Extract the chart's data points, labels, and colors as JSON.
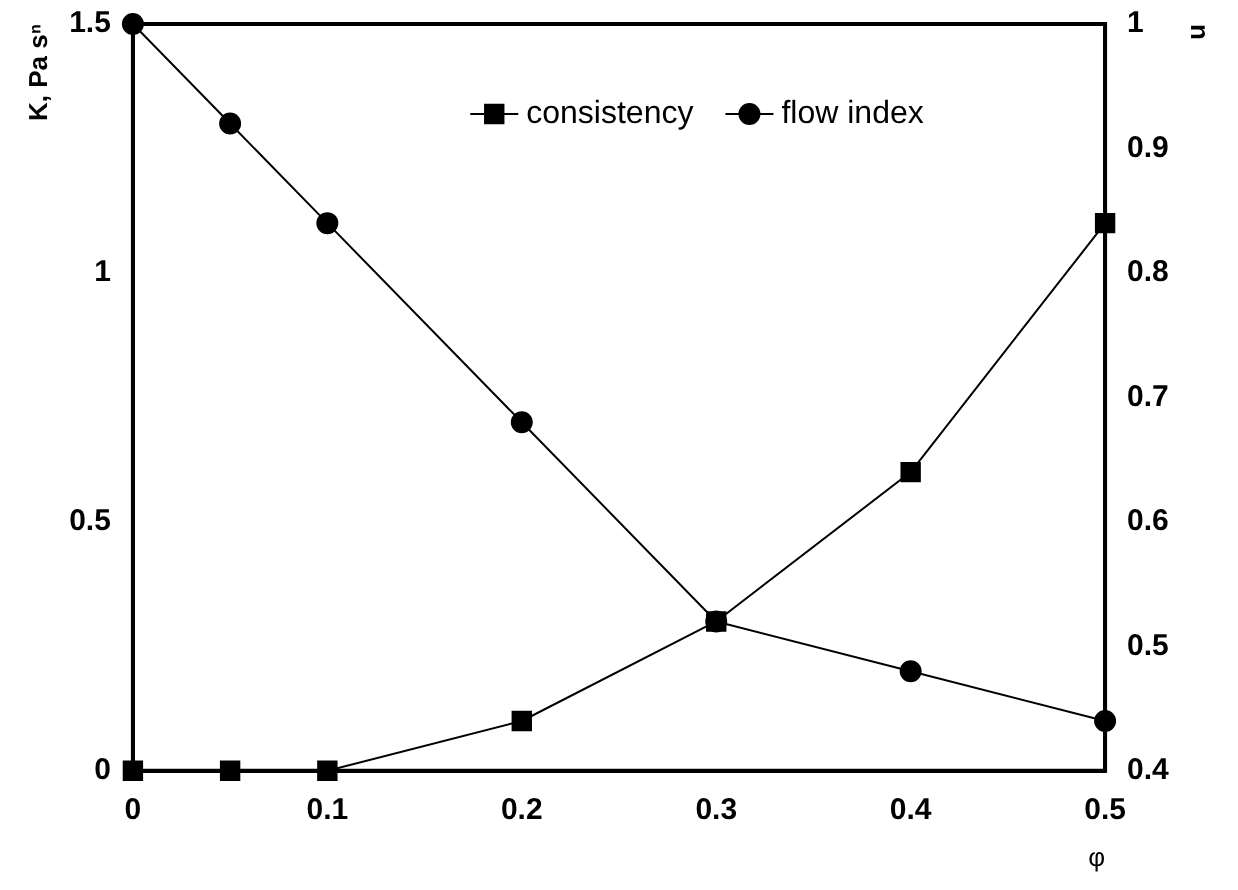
{
  "chart_data": {
    "type": "line",
    "xlabel": "φ",
    "ylabel": "K, Pa sⁿ",
    "y2label": "n",
    "x": [
      0,
      0.05,
      0.1,
      0.2,
      0.3,
      0.4,
      0.5
    ],
    "series": [
      {
        "name": "consistency",
        "color": "#000000",
        "marker": "square",
        "values": [
          0,
          0,
          0,
          0.1,
          0.3,
          0.6,
          1.1
        ]
      },
      {
        "name": "flow index",
        "color": "#000000",
        "marker": "circle",
        "axis": "y2",
        "values": [
          1,
          0.92,
          0.84,
          0.68,
          0.52,
          0.48,
          0.44
        ]
      }
    ],
    "xlim": [
      0,
      0.5
    ],
    "xticks": [
      0,
      0.1,
      0.2,
      0.3,
      0.4,
      0.5
    ],
    "ylim": [
      0,
      1.5
    ],
    "yticks": [
      0,
      0.5,
      1,
      1.5
    ],
    "y2lim": [
      0.4,
      1
    ],
    "y2ticks": [
      0.4,
      0.5,
      0.6,
      0.7,
      0.8,
      0.9,
      1
    ],
    "grid": false,
    "legend": "top",
    "line_style": "solid"
  }
}
